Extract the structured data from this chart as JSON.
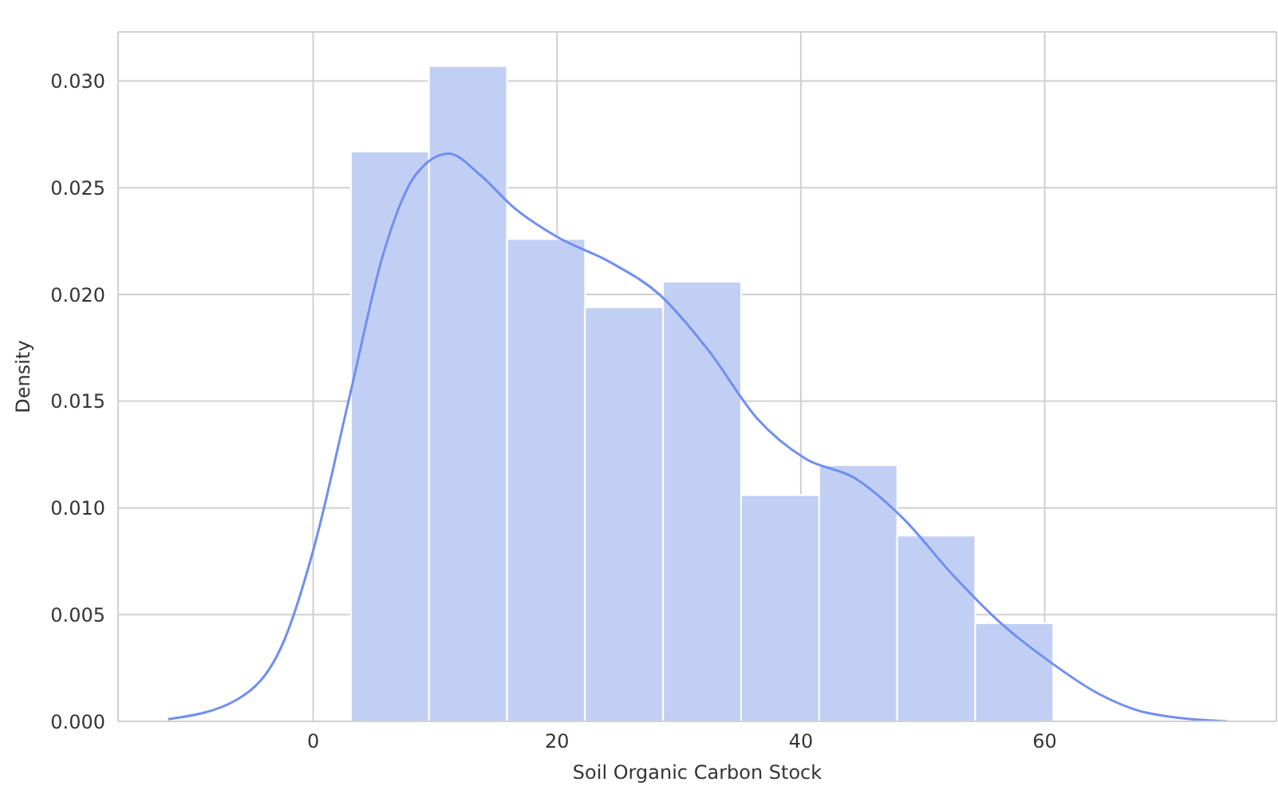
{
  "chart_data": {
    "type": "histogram",
    "xlabel": "Soil Organic Carbon Stock",
    "ylabel": "Density",
    "bins": [
      3.1,
      9.5,
      15.9,
      22.3,
      28.7,
      35.1,
      41.5,
      47.9,
      54.3,
      60.7
    ],
    "values": [
      0.0267,
      0.0307,
      0.0226,
      0.0194,
      0.0206,
      0.0106,
      0.012,
      0.0087,
      0.0046
    ],
    "color": "#c2cff5",
    "series": [
      {
        "type": "line",
        "color": "#6f8ff0",
        "x": [
          -11.9,
          -6.3,
          -2.3,
          0,
          3.1,
          5.7,
          8.4,
          11.1,
          13.7,
          16.4,
          20,
          24.4,
          28.4,
          32.4,
          36.4,
          40.4,
          44.4,
          48.4,
          52.4,
          56.4,
          60.4,
          64.4,
          68.4,
          75
        ],
        "values": [
          0.0001,
          0.001,
          0.0039,
          0.008,
          0.0155,
          0.0218,
          0.0256,
          0.0266,
          0.0256,
          0.0241,
          0.0227,
          0.0215,
          0.02,
          0.0174,
          0.0142,
          0.0123,
          0.0114,
          0.0095,
          0.0069,
          0.0046,
          0.0028,
          0.0013,
          0.0004,
          0
        ]
      }
    ],
    "xlim": [
      -16,
      79
    ],
    "xticks": [
      0,
      20,
      40,
      60
    ],
    "ylim": [
      0,
      0.0323
    ],
    "yticks": [
      {
        "value": 0,
        "label": "0.000"
      },
      {
        "value": 0.005,
        "label": "0.005"
      },
      {
        "value": 0.01,
        "label": "0.010"
      },
      {
        "value": 0.015,
        "label": "0.015"
      },
      {
        "value": 0.02,
        "label": "0.020"
      },
      {
        "value": 0.025,
        "label": "0.025"
      },
      {
        "value": 0.03,
        "label": "0.030"
      }
    ],
    "grid": true
  }
}
